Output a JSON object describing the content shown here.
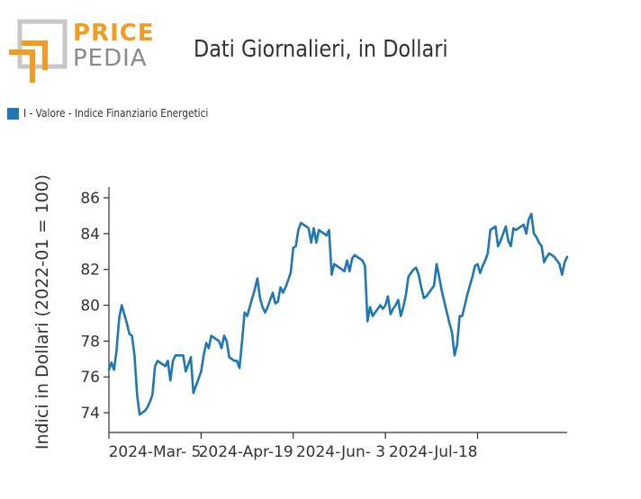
{
  "logo": {
    "line1": "PRICE",
    "line2": "PEDIA",
    "colors": {
      "orange": "#f39c21",
      "gray": "#8a8a8a",
      "light_gray": "#bdbdbd"
    }
  },
  "chart_data": {
    "type": "line",
    "title": "Dati Giornalieri, in Dollari",
    "ylabel": "Indici in Dollari (2022-01 = 100)",
    "xlabel": "",
    "ylim": [
      72.9,
      86.6
    ],
    "yticks": [
      74,
      76,
      78,
      80,
      82,
      84,
      86
    ],
    "xticks": [
      {
        "label": "",
        "index": 0
      },
      {
        "label": "2024-Mar- 5",
        "index": 36
      },
      {
        "label": "2024-Apr-19",
        "index": 72
      },
      {
        "label": "2024-Jun- 3",
        "index": 108
      },
      {
        "label": "2024-Jul-18",
        "index": 144
      }
    ],
    "series": [
      {
        "name": "I - Valore - Indice Finanziario Energetici",
        "color": "#1f77b4",
        "values": [
          76.4,
          76.8,
          76.4,
          77.5,
          79.3,
          80.0,
          79.5,
          79.0,
          78.4,
          78.3,
          77.2,
          75.0,
          73.9,
          74.0,
          74.1,
          74.3,
          74.6,
          75.0,
          76.6,
          76.9,
          76.8,
          76.7,
          76.6,
          76.9,
          75.8,
          76.9,
          77.2,
          77.2,
          77.2,
          77.2,
          76.3,
          76.7,
          77.1,
          75.1,
          75.5,
          75.9,
          76.3,
          77.2,
          77.9,
          77.6,
          78.3,
          78.2,
          78.1,
          78.0,
          77.6,
          78.3,
          78.0,
          77.1,
          77.0,
          76.9,
          76.9,
          76.5,
          78.0,
          79.6,
          79.4,
          79.9,
          80.4,
          80.9,
          81.5,
          80.4,
          79.9,
          79.6,
          79.9,
          80.3,
          80.7,
          80.1,
          80.2,
          81.0,
          80.7,
          81.0,
          81.4,
          81.8,
          83.2,
          83.3,
          84.2,
          84.6,
          84.5,
          84.4,
          84.3,
          83.5,
          84.3,
          83.5,
          84.2,
          84.1,
          84.0,
          83.9,
          84.2,
          81.7,
          82.3,
          82.2,
          82.1,
          82.0,
          81.9,
          82.5,
          81.9,
          82.6,
          82.8,
          82.7,
          82.6,
          82.5,
          82.2,
          79.1,
          79.9,
          79.4,
          79.6,
          79.8,
          80.0,
          79.8,
          80.0,
          80.5,
          79.5,
          79.8,
          80.0,
          80.3,
          79.4,
          79.9,
          80.6,
          81.6,
          81.8,
          82.0,
          82.1,
          81.7,
          81.0,
          80.4,
          80.5,
          80.7,
          80.9,
          81.1,
          82.3,
          81.6,
          80.8,
          80.2,
          79.6,
          79.0,
          78.5,
          77.2,
          77.8,
          79.4,
          79.4,
          80.0,
          80.6,
          81.1,
          81.6,
          82.2,
          82.3,
          81.8,
          82.2,
          82.5,
          82.9,
          84.2,
          84.3,
          84.4,
          83.3,
          83.6,
          84.0,
          84.4,
          83.6,
          83.3,
          84.3,
          84.2,
          84.3,
          84.4,
          84.5,
          84.0,
          84.8,
          85.1,
          84.0,
          83.8,
          83.5,
          83.3,
          82.4,
          82.7,
          82.9,
          82.8,
          82.7,
          82.5,
          82.3,
          81.7,
          82.4,
          82.7
        ]
      }
    ]
  }
}
